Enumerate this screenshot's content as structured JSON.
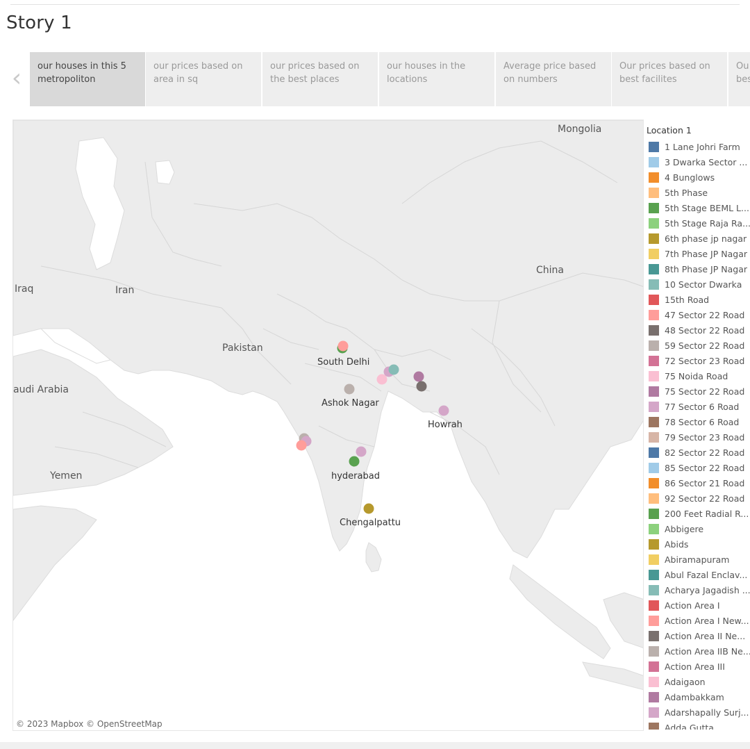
{
  "story_title": "Story 1",
  "nav": {
    "prev_icon": "chevron-left-icon",
    "tabs": [
      {
        "label": "our houses in this 5 metropoliton",
        "active": true
      },
      {
        "label": "our prices based on area in sq",
        "active": false
      },
      {
        "label": "our prices based on the best places",
        "active": false
      },
      {
        "label": "our houses in the locations",
        "active": false
      },
      {
        "label": "Average price based on numbers",
        "active": false
      },
      {
        "label": "Our prices based on best facilites",
        "active": false
      },
      {
        "label": "Ou bes",
        "active": false
      }
    ]
  },
  "map": {
    "country_labels": {
      "mongolia": "Mongolia",
      "china": "China",
      "iraq": "Iraq",
      "iran": "Iran",
      "pakistan": "Pakistan",
      "saudi_arabia": "audi Arabia",
      "yemen": "Yemen"
    },
    "city_labels": {
      "south_delhi": "South Delhi",
      "ashok_nagar": "Ashok Nagar",
      "howrah": "Howrah",
      "hyderabad": "hyderabad",
      "chengalpattu": "Chengalpattu"
    },
    "attribution": "© 2023 Mapbox  © OpenStreetMap"
  },
  "legend": {
    "title": "Location 1",
    "items": [
      {
        "label": "1 Lane Johri Farm",
        "color": "#4e79a7"
      },
      {
        "label": "3 Dwarka Sector ...",
        "color": "#a0cbe8"
      },
      {
        "label": "4 Bunglows",
        "color": "#f28e2b"
      },
      {
        "label": "5th Phase",
        "color": "#ffbe7d"
      },
      {
        "label": "5th Stage BEML L...",
        "color": "#59a14f"
      },
      {
        "label": "5th Stage Raja Ra...",
        "color": "#8cd17d"
      },
      {
        "label": "6th phase jp nagar",
        "color": "#b6992d"
      },
      {
        "label": "7th Phase JP Nagar",
        "color": "#f1ce63"
      },
      {
        "label": "8th Phase JP Nagar",
        "color": "#499894"
      },
      {
        "label": "10 Sector Dwarka",
        "color": "#86bcb6"
      },
      {
        "label": "15th Road",
        "color": "#e15759"
      },
      {
        "label": "47 Sector 22 Road",
        "color": "#ff9d9a"
      },
      {
        "label": "48 Sector 22 Road",
        "color": "#79706e"
      },
      {
        "label": "59 Sector 22 Road",
        "color": "#bab0ac"
      },
      {
        "label": "72 Sector 23 Road",
        "color": "#d37295"
      },
      {
        "label": "75 Noida Road",
        "color": "#fabfd2"
      },
      {
        "label": "75 Sector 22 Road",
        "color": "#b07aa1"
      },
      {
        "label": "77 Sector 6 Road",
        "color": "#d4a6c8"
      },
      {
        "label": "78 Sector 6 Road",
        "color": "#9d7660"
      },
      {
        "label": "79 Sector 23 Road",
        "color": "#d7b5a6"
      },
      {
        "label": "82 Sector 22 Road",
        "color": "#4e79a7"
      },
      {
        "label": "85 Sector 22 Road",
        "color": "#a0cbe8"
      },
      {
        "label": "86 Sector 21 Road",
        "color": "#f28e2b"
      },
      {
        "label": "92 Sector 22 Road",
        "color": "#ffbe7d"
      },
      {
        "label": "200 Feet Radial R...",
        "color": "#59a14f"
      },
      {
        "label": "Abbigere",
        "color": "#8cd17d"
      },
      {
        "label": "Abids",
        "color": "#b6992d"
      },
      {
        "label": "Abiramapuram",
        "color": "#f1ce63"
      },
      {
        "label": "Abul Fazal Enclav...",
        "color": "#499894"
      },
      {
        "label": "Acharya Jagadish ...",
        "color": "#86bcb6"
      },
      {
        "label": "Action Area I",
        "color": "#e15759"
      },
      {
        "label": "Action Area I New...",
        "color": "#ff9d9a"
      },
      {
        "label": "Action Area II Ne...",
        "color": "#79706e"
      },
      {
        "label": "Action Area IIB Ne...",
        "color": "#bab0ac"
      },
      {
        "label": "Action Area III",
        "color": "#d37295"
      },
      {
        "label": "Adaigaon",
        "color": "#fabfd2"
      },
      {
        "label": "Adambakkam",
        "color": "#b07aa1"
      },
      {
        "label": "Adarshapally Surj...",
        "color": "#d4a6c8"
      },
      {
        "label": "Adda Gutta",
        "color": "#9d7660"
      }
    ]
  }
}
